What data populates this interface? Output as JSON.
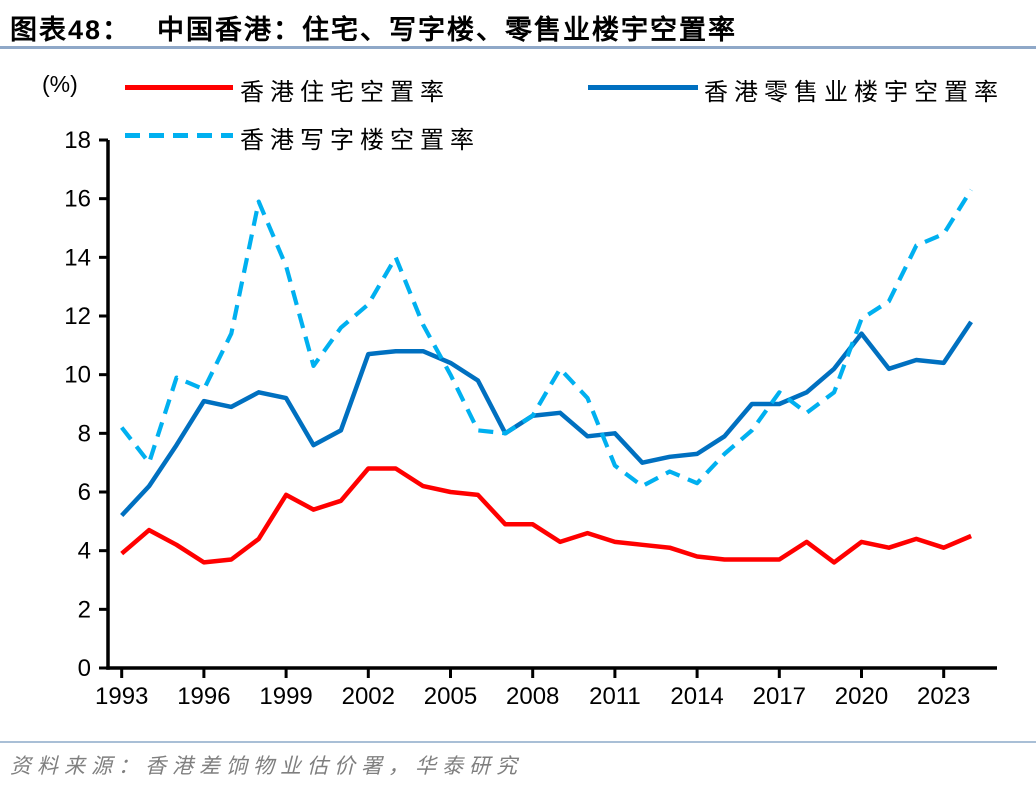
{
  "title": {
    "tag": "图表48：",
    "text": "中国香港：住宅、写字楼、零售业楼宇空置率"
  },
  "axis_unit": "(%)",
  "source": "资料来源：香港差饷物业估价署，华泰研究",
  "colors": {
    "residential": "#FF0000",
    "retail": "#0070C0",
    "office": "#00B0F0",
    "axis": "#000000",
    "title_rule": "#8FA8C8",
    "footer_rule": "#A9BFD6",
    "source_text": "#7F7F7F"
  },
  "chart_data": {
    "type": "line",
    "x": [
      1993,
      1994,
      1995,
      1996,
      1997,
      1998,
      1999,
      2000,
      2001,
      2002,
      2003,
      2004,
      2005,
      2006,
      2007,
      2008,
      2009,
      2010,
      2011,
      2012,
      2013,
      2014,
      2015,
      2016,
      2017,
      2018,
      2019,
      2020,
      2021,
      2022,
      2023,
      2024
    ],
    "x_tick_labels": [
      "1993",
      "1996",
      "1999",
      "2002",
      "2005",
      "2008",
      "2011",
      "2014",
      "2017",
      "2020",
      "2023"
    ],
    "x_tick_every": 3,
    "ylim": [
      0,
      18
    ],
    "y_tick_step": 2,
    "y_ticks": [
      0,
      2,
      4,
      6,
      8,
      10,
      12,
      14,
      16,
      18
    ],
    "grid": false,
    "legend_position": "top",
    "series": [
      {
        "key": "residential",
        "name": "香港住宅空置率",
        "color": "#FF0000",
        "line_style": "solid",
        "values": [
          3.9,
          4.7,
          4.2,
          3.6,
          3.7,
          4.4,
          5.9,
          5.4,
          5.7,
          6.8,
          6.8,
          6.2,
          6.0,
          5.9,
          4.9,
          4.9,
          4.3,
          4.6,
          4.3,
          4.2,
          4.1,
          3.8,
          3.7,
          3.7,
          3.7,
          4.3,
          3.6,
          4.3,
          4.1,
          4.4,
          4.1,
          4.5
        ]
      },
      {
        "key": "retail",
        "name": "香港零售业楼宇空置率",
        "color": "#0070C0",
        "line_style": "solid",
        "values": [
          5.2,
          6.2,
          7.6,
          9.1,
          8.9,
          9.4,
          9.2,
          7.6,
          8.1,
          10.7,
          10.8,
          10.8,
          10.4,
          9.8,
          8.0,
          8.6,
          8.7,
          7.9,
          8.0,
          7.0,
          7.2,
          7.3,
          7.9,
          9.0,
          9.0,
          9.4,
          10.2,
          11.4,
          10.2,
          10.5,
          10.4,
          11.8
        ]
      },
      {
        "key": "office",
        "name": "香港写字楼空置率",
        "color": "#00B0F0",
        "line_style": "dashed",
        "values": [
          8.2,
          7.0,
          9.9,
          9.5,
          11.4,
          15.9,
          13.7,
          10.3,
          11.6,
          12.4,
          14.0,
          11.7,
          10.0,
          8.1,
          8.0,
          8.6,
          10.2,
          9.2,
          6.9,
          6.2,
          6.7,
          6.3,
          7.3,
          8.1,
          9.4,
          8.7,
          9.4,
          11.9,
          12.5,
          14.4,
          14.8,
          16.3
        ]
      }
    ]
  }
}
